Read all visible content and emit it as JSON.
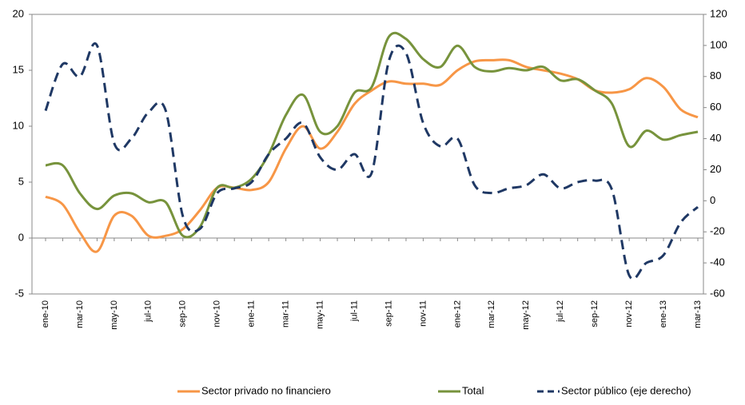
{
  "chart_data": {
    "type": "line",
    "categories": [
      "ene-10",
      null,
      "mar-10",
      null,
      "may-10",
      null,
      "jul-10",
      null,
      "sep-10",
      null,
      "nov-10",
      null,
      "ene-11",
      null,
      "mar-11",
      null,
      "may-11",
      null,
      "jul-11",
      null,
      "sep-11",
      null,
      "nov-11",
      null,
      "ene-12",
      null,
      "mar-12",
      null,
      "may-12",
      null,
      "jul-12",
      null,
      "sep-12",
      null,
      "nov-12",
      null,
      "ene-13",
      null,
      "mar-13"
    ],
    "series": [
      {
        "name": "Sector privado no financiero",
        "color": "#f79646",
        "dash": false,
        "values": [
          3.7,
          3.0,
          0.5,
          -1.2,
          2.0,
          2.0,
          0.2,
          0.2,
          0.8,
          2.5,
          4.5,
          4.5,
          4.3,
          5.0,
          8.0,
          10.0,
          8.0,
          9.5,
          12.0,
          13.2,
          14.0,
          13.8,
          13.8,
          13.7,
          15.0,
          15.8,
          15.9,
          15.9,
          15.3,
          15.0,
          14.7,
          14.2,
          13.2,
          13.0,
          13.3,
          14.3,
          13.5,
          11.5,
          10.8
        ]
      },
      {
        "name": "Total",
        "color": "#77933c",
        "dash": false,
        "values": [
          6.5,
          6.5,
          4.0,
          2.6,
          3.8,
          4.0,
          3.2,
          3.2,
          0.2,
          1.0,
          4.5,
          4.5,
          5.3,
          7.5,
          11.0,
          12.8,
          9.5,
          10.0,
          13.0,
          13.5,
          18.0,
          17.8,
          16.0,
          15.3,
          17.2,
          15.3,
          14.9,
          15.2,
          15.0,
          15.3,
          14.1,
          14.2,
          13.2,
          12.0,
          8.2,
          9.6,
          8.8,
          9.2,
          9.5
        ]
      },
      {
        "name": "Sector público (eje derecho)",
        "color": "#1f3864",
        "dash": true,
        "axis": "y2",
        "values": [
          58,
          88,
          80,
          100,
          37,
          40,
          57,
          58,
          -10,
          -18,
          5,
          8,
          12,
          30,
          40,
          50,
          28,
          20,
          30,
          18,
          90,
          95,
          50,
          35,
          40,
          10,
          5,
          8,
          10,
          17,
          8,
          12,
          13,
          7,
          -48,
          -40,
          -35,
          -14,
          -4
        ]
      }
    ],
    "ylim": [
      -5,
      20
    ],
    "yticks": [
      -5,
      0,
      5,
      10,
      15,
      20
    ],
    "y2lim": [
      -60,
      120
    ],
    "y2ticks": [
      -60,
      -40,
      -20,
      0,
      20,
      40,
      60,
      80,
      100,
      120
    ],
    "grid": false,
    "legend": "bottom"
  }
}
